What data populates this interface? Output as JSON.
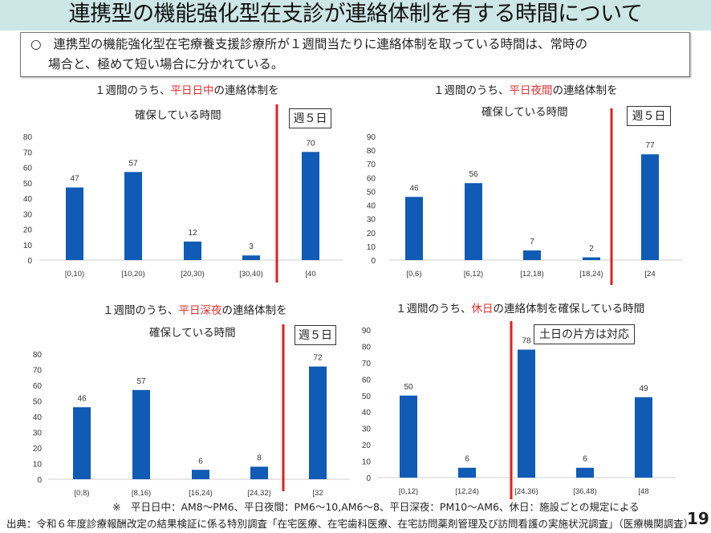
{
  "title": "連携型の機能強化型在支診が連絡体制を有する時間について",
  "summary": {
    "bullet": "○",
    "line1": "連携型の機能強化型在宅療養支援診療所が１週間当たりに連絡体制を取っている時間は、常時の",
    "line2": "場合と、極めて短い場合に分かれている。"
  },
  "colors": {
    "bar": "#0f5bb5",
    "redline": "#e02020",
    "highlight": "#e03030",
    "titlebar": "#cde6e6"
  },
  "chart_data": [
    {
      "type": "bar",
      "title_pre": "１週間のうち、",
      "title_hl": "平日日中",
      "title_post": "の連絡体制を",
      "title_line2": "確保している時間",
      "categories": [
        "[0,10)",
        "[10,20)",
        "[20,30)",
        "[30,40)",
        "[40"
      ],
      "values": [
        47,
        57,
        12,
        3,
        70
      ],
      "ylim": [
        0,
        80
      ],
      "yticks": [
        0,
        10,
        20,
        30,
        40,
        50,
        60,
        70,
        80
      ],
      "annotation": "週５日"
    },
    {
      "type": "bar",
      "title_pre": "１週間のうち、",
      "title_hl": "平日夜間",
      "title_post": "の連絡体制を",
      "title_line2": "確保している時間",
      "categories": [
        "[0,6)",
        "[6,12)",
        "[12,18)",
        "[18,24)",
        "[24"
      ],
      "values": [
        46,
        56,
        7,
        2,
        77
      ],
      "ylim": [
        0,
        90
      ],
      "yticks": [
        0,
        10,
        20,
        30,
        40,
        50,
        60,
        70,
        80,
        90
      ],
      "annotation": "週５日"
    },
    {
      "type": "bar",
      "title_pre": "１週間のうち、",
      "title_hl": "平日深夜",
      "title_post": "の連絡体制を",
      "title_line2": "確保している時間",
      "categories": [
        "[0,8)",
        "[8,16)",
        "[16,24)",
        "[24,32)",
        "[32"
      ],
      "values": [
        46,
        57,
        6,
        8,
        72
      ],
      "ylim": [
        0,
        80
      ],
      "yticks": [
        0,
        10,
        20,
        30,
        40,
        50,
        60,
        70,
        80
      ],
      "annotation": "週５日"
    },
    {
      "type": "bar",
      "title_pre": "１週間のうち、",
      "title_hl": "休日",
      "title_post": "の連絡体制を確保している時間",
      "title_line2": "",
      "categories": [
        "[0,12)",
        "[12,24)",
        "[24,36)",
        "[36,48)",
        "[48"
      ],
      "values": [
        50,
        6,
        78,
        6,
        49
      ],
      "ylim": [
        0,
        90
      ],
      "yticks": [
        0,
        10,
        20,
        30,
        40,
        50,
        60,
        70,
        80,
        90
      ],
      "annotation": "土日の片方は対応"
    }
  ],
  "note": "※　平日日中：AM8～PM6、平日夜間：PM6～10,AM6～8、平日深夜：PM10～AM6、休日：施設ごとの規定による",
  "source": "出典：令和６年度診療報酬改定の結果検証に係る特別調査「在宅医療、在宅歯科医療、在宅訪問薬剤管理及び訪問看護の実施状況調査」（医療機関調査）",
  "page_number": "19"
}
